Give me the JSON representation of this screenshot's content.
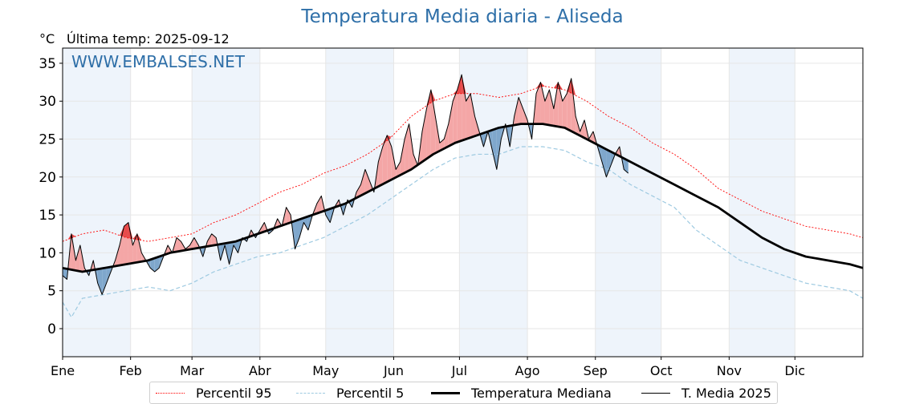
{
  "title": "Temperatura Media diaria - Aliseda",
  "unit_label": "°C",
  "last_temp_label": "Última temp: 2025-09-12",
  "watermark": "WWW.EMBALSES.NET",
  "colors": {
    "title": "#2e6fa8",
    "p95": "#ff0000",
    "p5": "#9ecae1",
    "median": "#000000",
    "current": "#000000",
    "above_fill": "#f4a6a6",
    "above_peak": "#e84a4a",
    "below_fill": "#7fa7cc",
    "month_band": "#eef4fb"
  },
  "legend": [
    {
      "key": "p95",
      "label": "Percentil 95"
    },
    {
      "key": "p5",
      "label": "Percentil 5"
    },
    {
      "key": "median",
      "label": "Temperatura Mediana"
    },
    {
      "key": "current",
      "label": "T. Media 2025"
    }
  ],
  "chart_data": {
    "type": "line",
    "x_axis": "day_of_year",
    "xlim": [
      1,
      366
    ],
    "ylim": [
      -3.7,
      37
    ],
    "y_ticks": [
      0,
      5,
      10,
      15,
      20,
      25,
      30,
      35
    ],
    "x_tick_labels": [
      "Ene",
      "Feb",
      "Mar",
      "Abr",
      "May",
      "Jun",
      "Jul",
      "Ago",
      "Sep",
      "Oct",
      "Nov",
      "Dic"
    ],
    "x_tick_days": [
      1,
      32,
      60,
      91,
      121,
      152,
      182,
      213,
      244,
      274,
      305,
      335
    ],
    "grid": true,
    "legend_position": "bottom",
    "series": [
      {
        "key": "p95",
        "name": "Percentil 95",
        "style": "dotted",
        "points": [
          [
            1,
            11.5
          ],
          [
            10,
            12.5
          ],
          [
            20,
            13
          ],
          [
            30,
            12
          ],
          [
            40,
            11.5
          ],
          [
            50,
            12
          ],
          [
            60,
            12.5
          ],
          [
            70,
            14
          ],
          [
            80,
            15
          ],
          [
            90,
            16.5
          ],
          [
            100,
            18
          ],
          [
            110,
            19
          ],
          [
            120,
            20.5
          ],
          [
            130,
            21.5
          ],
          [
            140,
            23
          ],
          [
            150,
            25
          ],
          [
            160,
            28
          ],
          [
            170,
            30
          ],
          [
            180,
            31
          ],
          [
            190,
            31
          ],
          [
            200,
            30.5
          ],
          [
            210,
            31
          ],
          [
            220,
            32
          ],
          [
            230,
            31.5
          ],
          [
            240,
            30
          ],
          [
            250,
            28
          ],
          [
            260,
            26.5
          ],
          [
            270,
            24.5
          ],
          [
            280,
            23
          ],
          [
            290,
            21
          ],
          [
            300,
            18.5
          ],
          [
            310,
            17
          ],
          [
            320,
            15.5
          ],
          [
            330,
            14.5
          ],
          [
            340,
            13.5
          ],
          [
            350,
            13
          ],
          [
            360,
            12.5
          ],
          [
            366,
            12
          ]
        ]
      },
      {
        "key": "p5",
        "name": "Percentil 5",
        "style": "dashed",
        "points": [
          [
            1,
            3.5
          ],
          [
            5,
            1.5
          ],
          [
            10,
            4
          ],
          [
            20,
            4.5
          ],
          [
            30,
            5
          ],
          [
            40,
            5.5
          ],
          [
            50,
            5
          ],
          [
            60,
            6
          ],
          [
            70,
            7.5
          ],
          [
            80,
            8.5
          ],
          [
            90,
            9.5
          ],
          [
            100,
            10
          ],
          [
            110,
            11
          ],
          [
            120,
            12
          ],
          [
            130,
            13.5
          ],
          [
            140,
            15
          ],
          [
            150,
            17
          ],
          [
            160,
            19
          ],
          [
            170,
            21
          ],
          [
            180,
            22.5
          ],
          [
            190,
            23
          ],
          [
            200,
            23
          ],
          [
            210,
            24
          ],
          [
            220,
            24
          ],
          [
            230,
            23.5
          ],
          [
            240,
            22
          ],
          [
            250,
            21
          ],
          [
            260,
            19
          ],
          [
            270,
            17.5
          ],
          [
            280,
            16
          ],
          [
            290,
            13
          ],
          [
            300,
            11
          ],
          [
            310,
            9
          ],
          [
            320,
            8
          ],
          [
            330,
            7
          ],
          [
            340,
            6
          ],
          [
            350,
            5.5
          ],
          [
            360,
            5
          ],
          [
            366,
            4
          ]
        ]
      },
      {
        "key": "median",
        "name": "Temperatura Mediana",
        "style": "solid-thick",
        "points": [
          [
            1,
            8
          ],
          [
            10,
            7.5
          ],
          [
            20,
            8
          ],
          [
            30,
            8.5
          ],
          [
            40,
            9
          ],
          [
            50,
            10
          ],
          [
            60,
            10.5
          ],
          [
            70,
            11
          ],
          [
            80,
            11.5
          ],
          [
            90,
            12.5
          ],
          [
            100,
            13.5
          ],
          [
            110,
            14.5
          ],
          [
            120,
            15.5
          ],
          [
            130,
            16.5
          ],
          [
            140,
            18
          ],
          [
            150,
            19.5
          ],
          [
            160,
            21
          ],
          [
            170,
            23
          ],
          [
            180,
            24.5
          ],
          [
            190,
            25.5
          ],
          [
            200,
            26.5
          ],
          [
            210,
            27
          ],
          [
            220,
            27
          ],
          [
            230,
            26.5
          ],
          [
            240,
            25
          ],
          [
            250,
            23.5
          ],
          [
            260,
            22
          ],
          [
            270,
            20.5
          ],
          [
            280,
            19
          ],
          [
            290,
            17.5
          ],
          [
            300,
            16
          ],
          [
            310,
            14
          ],
          [
            320,
            12
          ],
          [
            330,
            10.5
          ],
          [
            340,
            9.5
          ],
          [
            350,
            9
          ],
          [
            360,
            8.5
          ],
          [
            366,
            8
          ]
        ]
      },
      {
        "key": "current",
        "name": "T. Media 2025",
        "style": "solid-thin",
        "points": [
          [
            1,
            7
          ],
          [
            3,
            6.5
          ],
          [
            5,
            12.5
          ],
          [
            7,
            9
          ],
          [
            9,
            11
          ],
          [
            11,
            8
          ],
          [
            13,
            7
          ],
          [
            15,
            9
          ],
          [
            17,
            6
          ],
          [
            19,
            4.5
          ],
          [
            21,
            6
          ],
          [
            23,
            7.5
          ],
          [
            25,
            9
          ],
          [
            27,
            11
          ],
          [
            29,
            13.5
          ],
          [
            31,
            14
          ],
          [
            33,
            11
          ],
          [
            35,
            12.5
          ],
          [
            37,
            10
          ],
          [
            39,
            9
          ],
          [
            41,
            8
          ],
          [
            43,
            7.5
          ],
          [
            45,
            8
          ],
          [
            47,
            9.5
          ],
          [
            49,
            11
          ],
          [
            51,
            10
          ],
          [
            53,
            12
          ],
          [
            55,
            11.5
          ],
          [
            57,
            10.5
          ],
          [
            59,
            11
          ],
          [
            61,
            12
          ],
          [
            63,
            11
          ],
          [
            65,
            9.5
          ],
          [
            67,
            11.5
          ],
          [
            69,
            12.5
          ],
          [
            71,
            12
          ],
          [
            73,
            9
          ],
          [
            75,
            11
          ],
          [
            77,
            8.5
          ],
          [
            79,
            11
          ],
          [
            81,
            10
          ],
          [
            83,
            12
          ],
          [
            85,
            11.5
          ],
          [
            87,
            13
          ],
          [
            89,
            12
          ],
          [
            91,
            13
          ],
          [
            93,
            14
          ],
          [
            95,
            12.5
          ],
          [
            97,
            13
          ],
          [
            99,
            14.5
          ],
          [
            101,
            13.5
          ],
          [
            103,
            16
          ],
          [
            105,
            15
          ],
          [
            107,
            10.5
          ],
          [
            109,
            12
          ],
          [
            111,
            14
          ],
          [
            113,
            13
          ],
          [
            115,
            15
          ],
          [
            117,
            16.5
          ],
          [
            119,
            17.5
          ],
          [
            121,
            15
          ],
          [
            123,
            14
          ],
          [
            125,
            16
          ],
          [
            127,
            17
          ],
          [
            129,
            15
          ],
          [
            131,
            17
          ],
          [
            133,
            16
          ],
          [
            135,
            18
          ],
          [
            137,
            19
          ],
          [
            139,
            21
          ],
          [
            141,
            19.5
          ],
          [
            143,
            18
          ],
          [
            145,
            22
          ],
          [
            147,
            24
          ],
          [
            149,
            25.5
          ],
          [
            151,
            24
          ],
          [
            153,
            21
          ],
          [
            155,
            22
          ],
          [
            157,
            25
          ],
          [
            159,
            27
          ],
          [
            161,
            23
          ],
          [
            163,
            21.5
          ],
          [
            165,
            26
          ],
          [
            167,
            29
          ],
          [
            169,
            31.5
          ],
          [
            171,
            28
          ],
          [
            173,
            24.5
          ],
          [
            175,
            25
          ],
          [
            177,
            27
          ],
          [
            179,
            30
          ],
          [
            181,
            31.5
          ],
          [
            183,
            33.5
          ],
          [
            185,
            30
          ],
          [
            187,
            31
          ],
          [
            189,
            28
          ],
          [
            191,
            26
          ],
          [
            193,
            24
          ],
          [
            195,
            26
          ],
          [
            197,
            23.5
          ],
          [
            199,
            21
          ],
          [
            201,
            25
          ],
          [
            203,
            27
          ],
          [
            205,
            24
          ],
          [
            207,
            28
          ],
          [
            209,
            30.5
          ],
          [
            211,
            29
          ],
          [
            213,
            27.5
          ],
          [
            215,
            25
          ],
          [
            217,
            31
          ],
          [
            219,
            32.5
          ],
          [
            221,
            30
          ],
          [
            223,
            31.5
          ],
          [
            225,
            29
          ],
          [
            227,
            32.5
          ],
          [
            229,
            30
          ],
          [
            231,
            31
          ],
          [
            233,
            33
          ],
          [
            235,
            28
          ],
          [
            237,
            26
          ],
          [
            239,
            27.5
          ],
          [
            241,
            25
          ],
          [
            243,
            26
          ],
          [
            245,
            24
          ],
          [
            247,
            22
          ],
          [
            249,
            20
          ],
          [
            251,
            21.5
          ],
          [
            253,
            23
          ],
          [
            255,
            24
          ],
          [
            257,
            21
          ],
          [
            259,
            20.5
          ]
        ]
      }
    ]
  }
}
